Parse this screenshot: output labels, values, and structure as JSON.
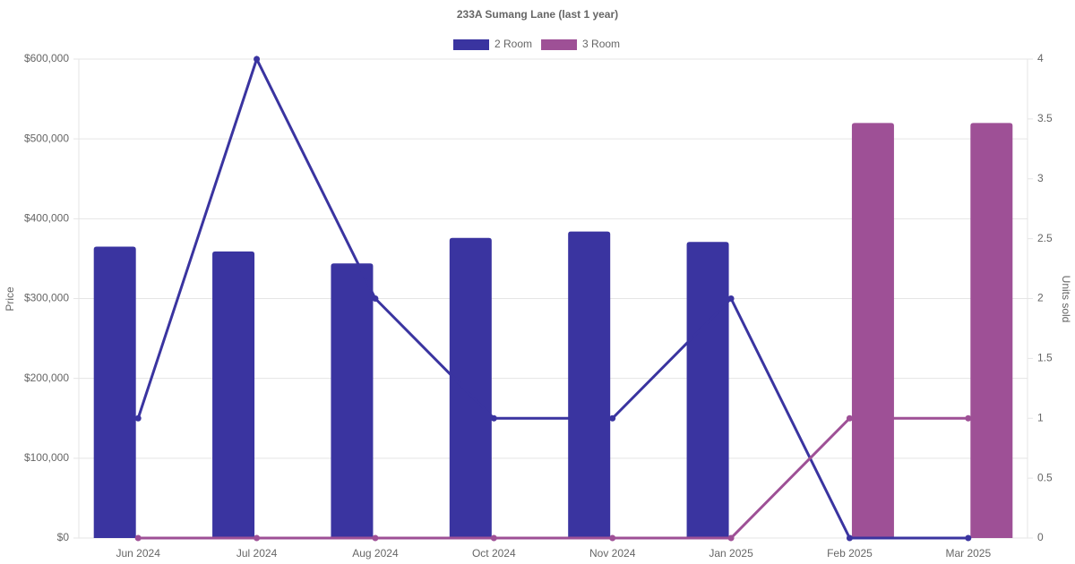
{
  "chart_data": {
    "type": "bar-line",
    "title": "233A Sumang Lane (last 1 year)",
    "y_label": "Price",
    "y2_label": "Units sold",
    "categories": [
      "Jun 2024",
      "Jul 2024",
      "Aug 2024",
      "Oct 2024",
      "Nov 2024",
      "Jan 2025",
      "Feb 2025",
      "Mar 2025"
    ],
    "series": [
      {
        "name": "2 Room",
        "color": "#3a34a0",
        "values": [
          365000,
          359000,
          344000,
          376000,
          384000,
          371000,
          null,
          null
        ],
        "units": [
          1,
          4,
          2,
          1,
          1,
          2,
          0,
          0
        ]
      },
      {
        "name": "3 Room",
        "color": "#9e5096",
        "values": [
          null,
          null,
          null,
          null,
          null,
          null,
          520000,
          520000
        ],
        "units": [
          0,
          0,
          0,
          0,
          0,
          0,
          1,
          1
        ]
      }
    ],
    "ylim": [
      0,
      600000
    ],
    "yticks": [
      {
        "value": 0,
        "label": "$0"
      },
      {
        "value": 100000,
        "label": "$100,000"
      },
      {
        "value": 200000,
        "label": "$200,000"
      },
      {
        "value": 300000,
        "label": "$300,000"
      },
      {
        "value": 400000,
        "label": "$400,000"
      },
      {
        "value": 500000,
        "label": "$500,000"
      },
      {
        "value": 600000,
        "label": "$600,000"
      }
    ],
    "y2lim": [
      0,
      4
    ],
    "y2ticks": [
      0,
      0.5,
      1,
      1.5,
      2,
      2.5,
      3,
      3.5,
      4
    ],
    "grid": true
  }
}
